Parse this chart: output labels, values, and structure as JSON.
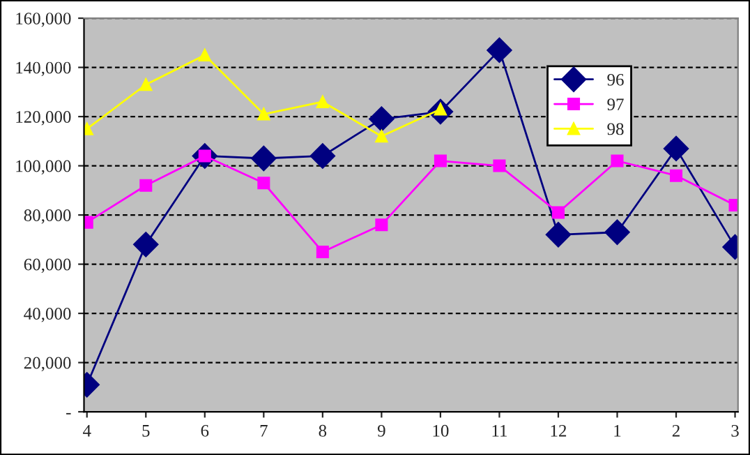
{
  "chart_data": {
    "type": "line",
    "categories": [
      "4",
      "5",
      "6",
      "7",
      "8",
      "9",
      "10",
      "11",
      "12",
      "1",
      "2",
      "3"
    ],
    "series": [
      {
        "name": "96",
        "color": "#000080",
        "marker": "diamond",
        "values": [
          11000,
          68000,
          104000,
          103000,
          104000,
          119000,
          122000,
          147000,
          72000,
          73000,
          107000,
          67000
        ]
      },
      {
        "name": "97",
        "color": "#ff00ff",
        "marker": "square",
        "values": [
          77000,
          92000,
          104000,
          93000,
          65000,
          76000,
          102000,
          100000,
          81000,
          102000,
          96000,
          84000
        ]
      },
      {
        "name": "98",
        "color": "#ffff00",
        "marker": "triangle",
        "values": [
          115000,
          133000,
          145000,
          121000,
          126000,
          112000,
          123000,
          null,
          null,
          null,
          null,
          null
        ]
      }
    ],
    "ylim": [
      0,
      160000
    ],
    "yticks": [
      {
        "value": 0,
        "label": "-"
      },
      {
        "value": 20000,
        "label": "20,000"
      },
      {
        "value": 40000,
        "label": "40,000"
      },
      {
        "value": 60000,
        "label": "60,000"
      },
      {
        "value": 80000,
        "label": "80,000"
      },
      {
        "value": 100000,
        "label": "100,000"
      },
      {
        "value": 120000,
        "label": "120,000"
      },
      {
        "value": 140000,
        "label": "140,000"
      },
      {
        "value": 160000,
        "label": "160,000"
      }
    ],
    "grid": "y",
    "legend": "top right",
    "line_style": "solid"
  }
}
